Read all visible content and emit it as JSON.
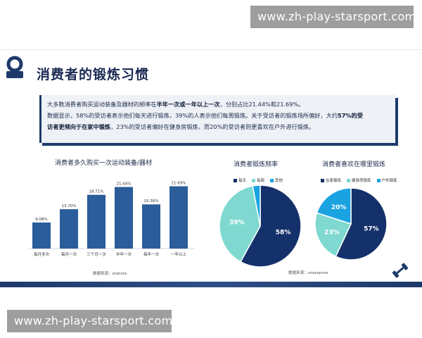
{
  "watermarks": {
    "top": "www.zh-play-starsport.com",
    "bottom": "www.zh-play-starsport.com"
  },
  "slide": {
    "title": "消费者的锻炼习惯",
    "summary": {
      "line1_a": "大多数消费者购买运动装备及器材的频率在",
      "line1_b": "半年一次或一年以上一次",
      "line1_c": "，分别占比21.44%和21.69%。",
      "line2_a": "数据显示，58%的受访者表示他们每天进行锻炼，39%的人表示他们每周锻炼。关于受访者的锻炼场所偏好，大约",
      "line2_b": "57%的受",
      "line3_a": "访者更倾向于在家中锻炼",
      "line3_b": "，23%的受访者偏好在健身房锻炼，而20%的受访者则更喜欢在户外进行锻炼。"
    }
  },
  "icons": [
    "logo-icon",
    "dumbbell-icon"
  ],
  "colors": {
    "navy": "#15316b",
    "bar": "#2a5d9a",
    "teal": "#7fd9d0",
    "sky": "#1aa3e0"
  },
  "chart_data": [
    {
      "type": "bar",
      "title": "消费者多久购买一次运动装备/器材",
      "categories": [
        "每月多次",
        "每月一次",
        "三个月一次",
        "半年一次",
        "每年一次",
        "一年以上"
      ],
      "values": [
        9.08,
        13.7,
        18.71,
        21.44,
        15.38,
        21.69
      ],
      "value_labels": [
        "9.08%",
        "13.70%",
        "18.71%",
        "21.44%",
        "15.38%",
        "21.69%"
      ],
      "ylim": [
        0,
        25
      ],
      "source": "数据来源：statista"
    },
    {
      "type": "pie",
      "title": "消费者锻炼频率",
      "labels": [
        "每天",
        "每周",
        "其他"
      ],
      "values": [
        58,
        39,
        3
      ],
      "value_labels": [
        "58%",
        "39%",
        ""
      ],
      "colors": [
        "#15316b",
        "#7fd9d0",
        "#1aa3e0"
      ],
      "source": "数据来源：voxpopme"
    },
    {
      "type": "pie",
      "title": "消费者喜欢在哪里锻炼",
      "labels": [
        "在家锻炼",
        "健身房锻炼",
        "户外锻炼"
      ],
      "values": [
        57,
        23,
        20
      ],
      "value_labels": [
        "57%",
        "23%",
        "20%"
      ],
      "colors": [
        "#15316b",
        "#7fd9d0",
        "#1aa3e0"
      ],
      "source": ""
    }
  ]
}
